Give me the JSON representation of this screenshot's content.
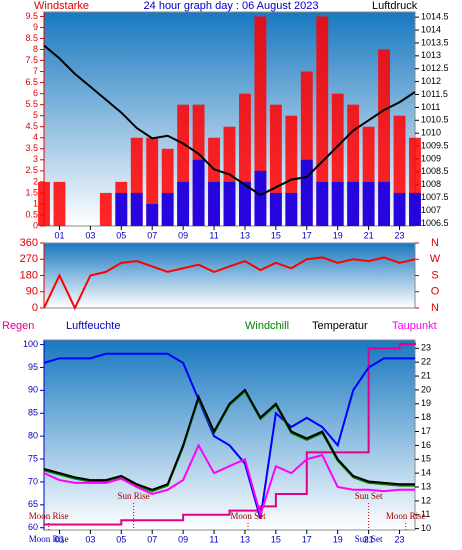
{
  "chart_data": [
    {
      "type": "combo",
      "title": "24 hour graph day : 06 August 2023",
      "x": [
        0,
        1,
        2,
        3,
        4,
        5,
        6,
        7,
        8,
        9,
        10,
        11,
        12,
        13,
        14,
        15,
        16,
        17,
        18,
        19,
        20,
        21,
        22,
        23,
        24
      ],
      "xlim": [
        0,
        24
      ],
      "xticks": [
        {
          "value": 1,
          "label": "01"
        },
        {
          "value": 3,
          "label": "03"
        },
        {
          "value": 5,
          "label": "05"
        },
        {
          "value": 7,
          "label": "07"
        },
        {
          "value": 9,
          "label": "09"
        },
        {
          "value": 11,
          "label": "11"
        },
        {
          "value": 13,
          "label": "13"
        },
        {
          "value": 15,
          "label": "15"
        },
        {
          "value": 17,
          "label": "17"
        },
        {
          "value": 19,
          "label": "19"
        },
        {
          "value": 21,
          "label": "21"
        },
        {
          "value": 23,
          "label": "23"
        }
      ],
      "ylim": [
        0,
        9.7
      ],
      "yticks": [
        0,
        0.5,
        1,
        1.5,
        2,
        2.5,
        3,
        3.5,
        4,
        4.5,
        5,
        5.5,
        6,
        6.5,
        7,
        7.5,
        8,
        8.5,
        9,
        9.5
      ],
      "y2lim": [
        1006.4,
        1014.7
      ],
      "y2ticks": [
        1006.5,
        1007,
        1007.5,
        1008,
        1008.5,
        1009,
        1009.5,
        1010,
        1010.5,
        1011,
        1011.5,
        1012,
        1012.5,
        1013,
        1013.5,
        1014,
        1014.5
      ],
      "ycolor": "#e00000",
      "y2color": "#000000",
      "series": [
        {
          "name": "Windstarke",
          "color": "#ff0000",
          "mark": "bar",
          "values": [
            2,
            2,
            0,
            0,
            1.5,
            2,
            4,
            4,
            3.5,
            5.5,
            5.5,
            4,
            4.5,
            6,
            9.5,
            5.5,
            5,
            7,
            9.5,
            6,
            5.5,
            4.5,
            8,
            5,
            4
          ]
        },
        {
          "color": "#0000ff",
          "mark": "bar",
          "values": [
            0,
            0,
            0,
            0,
            0,
            1.5,
            1.5,
            1,
            1.5,
            2,
            3,
            2,
            2,
            2,
            2.5,
            1.5,
            1.5,
            3,
            2,
            2,
            2,
            2,
            2,
            1.5,
            1.5
          ]
        },
        {
          "name": "Luftdruck",
          "color": "#000000",
          "mark": "line",
          "axis": "y2",
          "values": [
            1013.4,
            1012.9,
            1012.3,
            1011.8,
            1011.3,
            1010.8,
            1010.2,
            1009.8,
            1009.9,
            1009.6,
            1009.2,
            1008.6,
            1008.4,
            1008.0,
            1007.6,
            1007.9,
            1008.2,
            1008.3,
            1008.9,
            1009.5,
            1010.1,
            1010.5,
            1010.9,
            1011.2,
            1011.6
          ]
        }
      ]
    },
    {
      "type": "combo",
      "x": [
        0,
        1,
        2,
        3,
        4,
        5,
        6,
        7,
        8,
        9,
        10,
        11,
        12,
        13,
        14,
        15,
        16,
        17,
        18,
        19,
        20,
        21,
        22,
        23,
        24
      ],
      "xlim": [
        0,
        24
      ],
      "ylim": [
        0,
        360
      ],
      "yticks": [
        0,
        90,
        180,
        270,
        360
      ],
      "y2lim": [
        0,
        360
      ],
      "y2ticks": [
        {
          "value": 360,
          "label": "N"
        },
        {
          "value": 270,
          "label": "W"
        },
        {
          "value": 180,
          "label": "S"
        },
        {
          "value": 90,
          "label": "O"
        },
        {
          "value": 0,
          "label": "N"
        }
      ],
      "ycolor": "#e00000",
      "y2color": "#e00000",
      "series": [
        {
          "color": "#ff0000",
          "mark": "line",
          "values": [
            0,
            180,
            0,
            180,
            200,
            250,
            260,
            230,
            200,
            220,
            240,
            200,
            230,
            260,
            210,
            250,
            220,
            270,
            280,
            250,
            270,
            260,
            280,
            250,
            270
          ]
        }
      ]
    },
    {
      "type": "combo",
      "x": [
        0,
        1,
        2,
        3,
        4,
        5,
        6,
        7,
        8,
        9,
        10,
        11,
        12,
        13,
        14,
        15,
        16,
        17,
        18,
        19,
        20,
        21,
        22,
        23,
        24
      ],
      "xlim": [
        0,
        24
      ],
      "xticks": [
        {
          "value": 1,
          "label": "01"
        },
        {
          "value": 3,
          "label": "03"
        },
        {
          "value": 5,
          "label": "05"
        },
        {
          "value": 7,
          "label": "07"
        },
        {
          "value": 9,
          "label": "09"
        },
        {
          "value": 11,
          "label": "11"
        },
        {
          "value": 13,
          "label": "13"
        },
        {
          "value": 15,
          "label": "15"
        },
        {
          "value": 17,
          "label": "17"
        },
        {
          "value": 19,
          "label": "19"
        },
        {
          "value": 21,
          "label": "21"
        },
        {
          "value": 23,
          "label": "23"
        }
      ],
      "ylim": [
        59.5,
        101
      ],
      "yticks": [
        60,
        65,
        70,
        75,
        80,
        85,
        90,
        95,
        100
      ],
      "y2lim": [
        9.9,
        23.6
      ],
      "y2ticks": [
        10,
        11,
        12,
        13,
        14,
        15,
        16,
        17,
        18,
        19,
        20,
        21,
        22,
        23
      ],
      "ycolor": "#0000c0",
      "y2color": "#000000",
      "series": [
        {
          "name": "Regen",
          "color": "#e0008c",
          "mark": "step",
          "axis": "y2",
          "values": [
            10.3,
            10.3,
            10.3,
            10.3,
            10.3,
            10.6,
            10.6,
            10.6,
            10.6,
            11,
            11,
            11,
            11.3,
            11.3,
            11.6,
            12.5,
            12.5,
            15.5,
            15.5,
            15.5,
            15.5,
            23,
            23,
            23.3,
            23.4
          ]
        },
        {
          "name": "Luftfeuchte",
          "color": "#0000ff",
          "mark": "line",
          "values": [
            96,
            97,
            97,
            97,
            98,
            98,
            98,
            98,
            98,
            96,
            88,
            80,
            78,
            74,
            62,
            85,
            82,
            84,
            82,
            78,
            90,
            95,
            97,
            97,
            97
          ]
        },
        {
          "name": "Windchill",
          "color": "#008000",
          "mark": "line",
          "axis": "y2",
          "values": [
            14.2,
            13.9,
            13.6,
            13.4,
            13.4,
            13.7,
            13.1,
            12.7,
            13.1,
            15.9,
            19.4,
            16.9,
            18.9,
            19.9,
            17.9,
            18.9,
            16.9,
            16.4,
            16.9,
            14.9,
            13.7,
            13.3,
            13.2,
            13.1,
            13.1
          ]
        },
        {
          "name": "Temperatur",
          "color": "#000000",
          "mark": "line",
          "axis": "y2",
          "values": [
            14.3,
            14,
            13.7,
            13.5,
            13.5,
            13.8,
            13.2,
            12.8,
            13.2,
            16,
            19.5,
            17,
            19,
            20,
            18,
            19,
            17,
            16.5,
            17,
            15,
            13.8,
            13.4,
            13.3,
            13.2,
            13.2
          ]
        },
        {
          "name": "Taupunkt",
          "color": "#ff00ff",
          "mark": "line",
          "axis": "y2",
          "values": [
            14,
            13.5,
            13.3,
            13.3,
            13.3,
            13.6,
            13,
            12.5,
            12.8,
            13.5,
            16,
            14,
            14.5,
            15,
            11,
            14.5,
            14,
            15,
            15.3,
            13,
            12.8,
            12.8,
            12.7,
            12.8,
            12.8
          ]
        }
      ],
      "annotations": [
        {
          "label": "Moon Rise",
          "x": 0.3,
          "row": "low"
        },
        {
          "label": "Sun Rise",
          "x": 5.8,
          "row": "mid"
        },
        {
          "label": "Moon Set",
          "x": 13.2,
          "row": "low"
        },
        {
          "label": "Sun Set",
          "x": 21,
          "row": "mid"
        },
        {
          "label": "Moon Rise",
          "x": 23.4,
          "row": "low"
        },
        {
          "label": "Moon Rise",
          "x": 0.3,
          "row": "axis"
        },
        {
          "label": "Sun Set",
          "x": 21,
          "row": "axis"
        }
      ]
    }
  ]
}
